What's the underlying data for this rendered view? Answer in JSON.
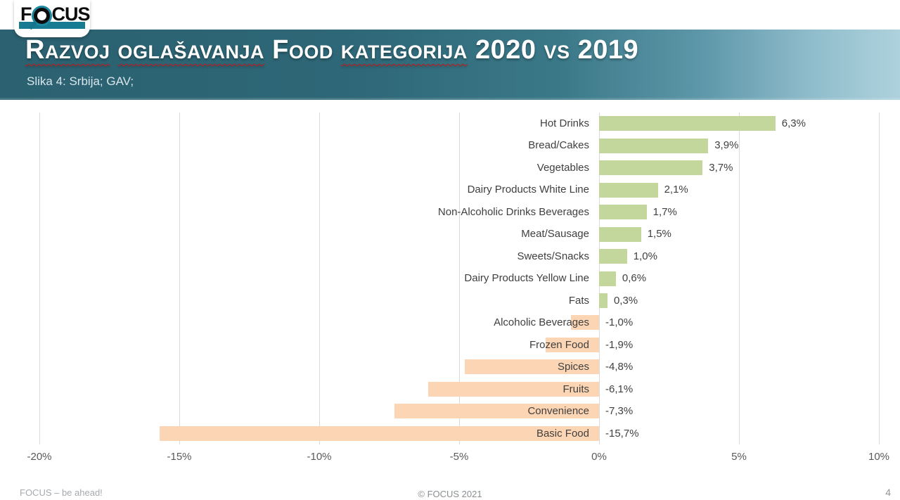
{
  "header": {
    "logo_prefix": "F",
    "logo_suffix": "CUS",
    "logo_text": "FOCUS",
    "title_full": "Razvoj oglašavanja Food kategorija 2020 vs 2019",
    "title_parts": [
      {
        "text": "Razvoj",
        "wavy": true
      },
      {
        "text": " ",
        "wavy": false
      },
      {
        "text": "oglašavanja",
        "wavy": true
      },
      {
        "text": " Food ",
        "wavy": false
      },
      {
        "text": "kategorija",
        "wavy": true
      },
      {
        "text": " 2020 vs 2019",
        "wavy": false
      }
    ],
    "subtitle": "Slika 4: Srbija; GAV;",
    "banner_color_left": "#2b6170",
    "banner_color_right": "#aed2dd",
    "logo_accent_color": "#177c92"
  },
  "chart_data": {
    "type": "bar",
    "orientation": "horizontal",
    "categories": [
      "Hot Drinks",
      "Bread/Cakes",
      "Vegetables",
      "Dairy Products White Line",
      "Non-Alcoholic Drinks Beverages",
      "Meat/Sausage",
      "Sweets/Snacks",
      "Dairy Products Yellow Line",
      "Fats",
      "Alcoholic Beverages",
      "Frozen Food",
      "Spices",
      "Fruits",
      "Convenience",
      "Basic Food"
    ],
    "values": [
      6.3,
      3.9,
      3.7,
      2.1,
      1.7,
      1.5,
      1.0,
      0.6,
      0.3,
      -1.0,
      -1.9,
      -4.8,
      -6.1,
      -7.3,
      -15.7
    ],
    "value_labels": [
      "6,3%",
      "3,9%",
      "3,7%",
      "2,1%",
      "1,7%",
      "1,5%",
      "1,0%",
      "0,6%",
      "0,3%",
      "-1,0%",
      "-1,9%",
      "-4,8%",
      "-6,1%",
      "-7,3%",
      "-15,7%"
    ],
    "xlim": [
      -20,
      10
    ],
    "x_ticks": [
      "-20%",
      "-15%",
      "-10%",
      "-5%",
      "0%",
      "5%",
      "10%"
    ],
    "x_tick_values": [
      -20,
      -15,
      -10,
      -5,
      0,
      5,
      10
    ],
    "positive_color": "#c3d69b",
    "negative_color": "#fcd5b4",
    "gridline_color": "#d9d9d9",
    "grid": true,
    "legend_position": "none",
    "unit": "percent",
    "title": ""
  },
  "footer": {
    "left": "FOCUS – be ahead!",
    "center": "© FOCUS 2021",
    "page_number": "4"
  }
}
